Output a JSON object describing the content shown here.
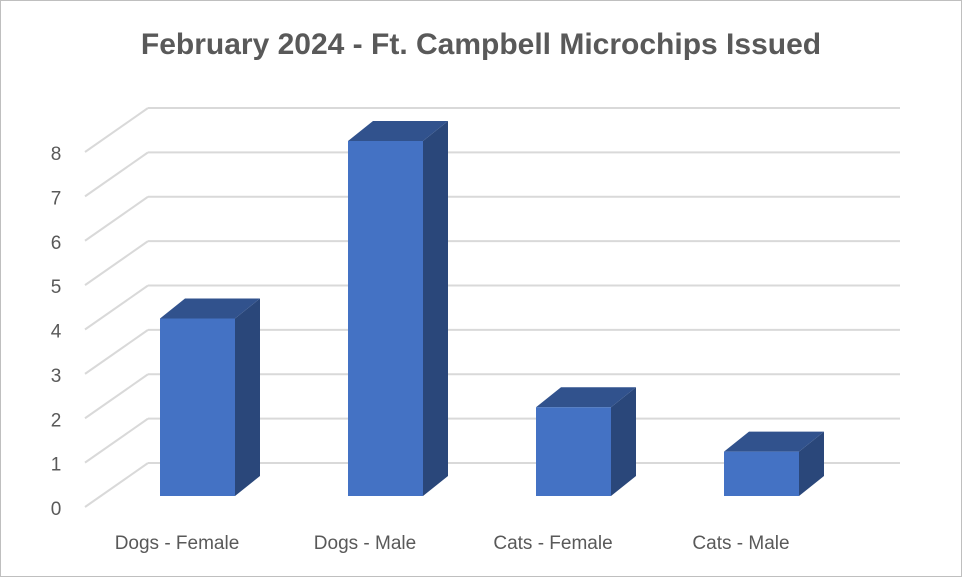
{
  "chart_data": {
    "type": "bar3d",
    "title": "February 2024 - Ft. Campbell Microchips Issued",
    "categories": [
      "Dogs - Female",
      "Dogs - Male",
      "Cats - Female",
      "Cats - Male"
    ],
    "values": [
      4,
      8,
      2,
      1
    ],
    "color": "#4472c4",
    "ylim": [
      0,
      8
    ],
    "yticks": [
      0,
      1,
      2,
      3,
      4,
      5,
      6,
      7,
      8
    ],
    "grid": true
  }
}
